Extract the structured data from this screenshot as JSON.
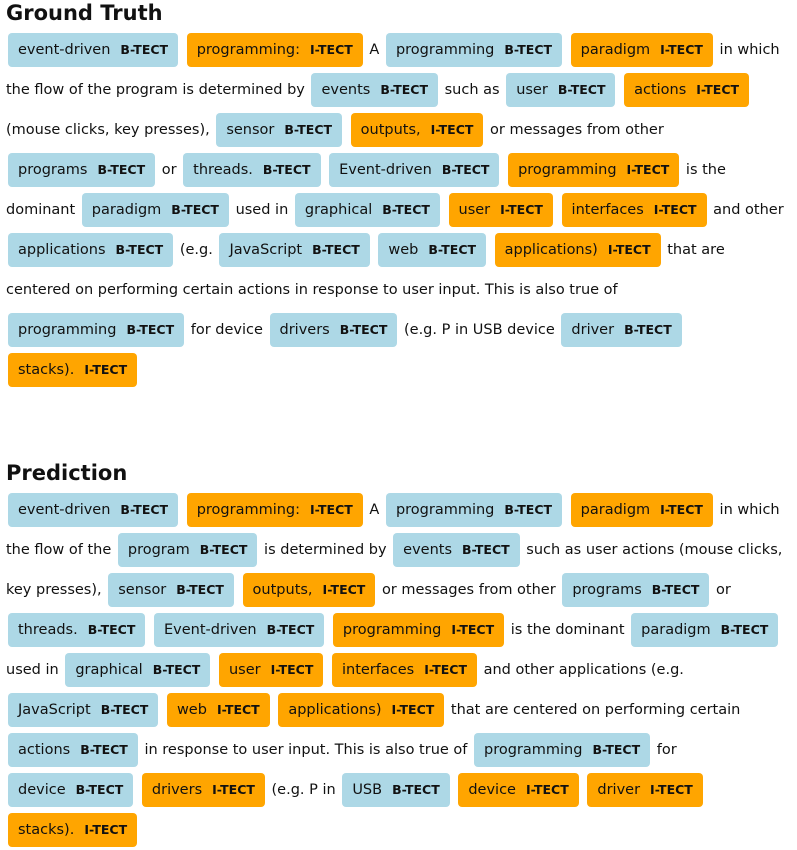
{
  "colors": {
    "b_tect": "#add8e6",
    "i_tect": "#ffa500"
  },
  "ground_truth": {
    "title": "Ground Truth",
    "tokens": [
      {
        "text": "event-driven",
        "tag": "B-TECT"
      },
      {
        "text": "programming:",
        "tag": "I-TECT"
      },
      {
        "text": "A"
      },
      {
        "text": "programming",
        "tag": "B-TECT"
      },
      {
        "text": "paradigm",
        "tag": "I-TECT"
      },
      {
        "text": "in which the flow of the program is determined by"
      },
      {
        "text": "events",
        "tag": "B-TECT"
      },
      {
        "text": "such as"
      },
      {
        "text": "user",
        "tag": "B-TECT"
      },
      {
        "text": "actions",
        "tag": "I-TECT"
      },
      {
        "text": "(mouse clicks, key presses),"
      },
      {
        "text": "sensor",
        "tag": "B-TECT"
      },
      {
        "text": "outputs,",
        "tag": "I-TECT"
      },
      {
        "text": "or messages from other"
      },
      {
        "text": "programs",
        "tag": "B-TECT"
      },
      {
        "text": "or"
      },
      {
        "text": "threads.",
        "tag": "B-TECT"
      },
      {
        "text": "Event-driven",
        "tag": "B-TECT"
      },
      {
        "text": "programming",
        "tag": "I-TECT"
      },
      {
        "text": "is the dominant"
      },
      {
        "text": "paradigm",
        "tag": "B-TECT"
      },
      {
        "text": "used in"
      },
      {
        "text": "graphical",
        "tag": "B-TECT"
      },
      {
        "text": "user",
        "tag": "I-TECT"
      },
      {
        "text": "interfaces",
        "tag": "I-TECT"
      },
      {
        "text": "and other"
      },
      {
        "text": "applications",
        "tag": "B-TECT"
      },
      {
        "text": "(e.g."
      },
      {
        "text": "JavaScript",
        "tag": "B-TECT"
      },
      {
        "text": "web",
        "tag": "B-TECT"
      },
      {
        "text": "applications)",
        "tag": "I-TECT"
      },
      {
        "text": "that are centered on performing certain actions in response to user input. This is also true of"
      },
      {
        "text": "programming",
        "tag": "B-TECT"
      },
      {
        "text": "for device"
      },
      {
        "text": "drivers",
        "tag": "B-TECT"
      },
      {
        "text": "(e.g. P in USB device"
      },
      {
        "text": "driver",
        "tag": "B-TECT"
      },
      {
        "text": "stacks).",
        "tag": "I-TECT"
      }
    ]
  },
  "prediction": {
    "title": "Prediction",
    "tokens": [
      {
        "text": "event-driven",
        "tag": "B-TECT"
      },
      {
        "text": "programming:",
        "tag": "I-TECT"
      },
      {
        "text": "A"
      },
      {
        "text": "programming",
        "tag": "B-TECT"
      },
      {
        "text": "paradigm",
        "tag": "I-TECT"
      },
      {
        "text": "in which the flow of the"
      },
      {
        "text": "program",
        "tag": "B-TECT"
      },
      {
        "text": "is determined by"
      },
      {
        "text": "events",
        "tag": "B-TECT"
      },
      {
        "text": "such as user actions (mouse clicks, key presses),"
      },
      {
        "text": "sensor",
        "tag": "B-TECT"
      },
      {
        "text": "outputs,",
        "tag": "I-TECT"
      },
      {
        "text": "or messages from other"
      },
      {
        "text": "programs",
        "tag": "B-TECT"
      },
      {
        "text": "or"
      },
      {
        "text": "threads.",
        "tag": "B-TECT"
      },
      {
        "text": "Event-driven",
        "tag": "B-TECT"
      },
      {
        "text": "programming",
        "tag": "I-TECT"
      },
      {
        "text": "is the dominant"
      },
      {
        "text": "paradigm",
        "tag": "B-TECT"
      },
      {
        "text": "used in"
      },
      {
        "text": "graphical",
        "tag": "B-TECT"
      },
      {
        "text": "user",
        "tag": "I-TECT"
      },
      {
        "text": "interfaces",
        "tag": "I-TECT"
      },
      {
        "text": "and other applications (e.g."
      },
      {
        "text": "JavaScript",
        "tag": "B-TECT"
      },
      {
        "text": "web",
        "tag": "I-TECT"
      },
      {
        "text": "applications)",
        "tag": "I-TECT"
      },
      {
        "text": "that are centered on performing certain"
      },
      {
        "text": "actions",
        "tag": "B-TECT"
      },
      {
        "text": "in response to user input. This is also true of"
      },
      {
        "text": "programming",
        "tag": "B-TECT"
      },
      {
        "text": "for"
      },
      {
        "text": "device",
        "tag": "B-TECT"
      },
      {
        "text": "drivers",
        "tag": "I-TECT"
      },
      {
        "text": "(e.g. P in"
      },
      {
        "text": "USB",
        "tag": "B-TECT"
      },
      {
        "text": "device",
        "tag": "I-TECT"
      },
      {
        "text": "driver",
        "tag": "I-TECT"
      },
      {
        "text": "stacks).",
        "tag": "I-TECT"
      }
    ]
  }
}
